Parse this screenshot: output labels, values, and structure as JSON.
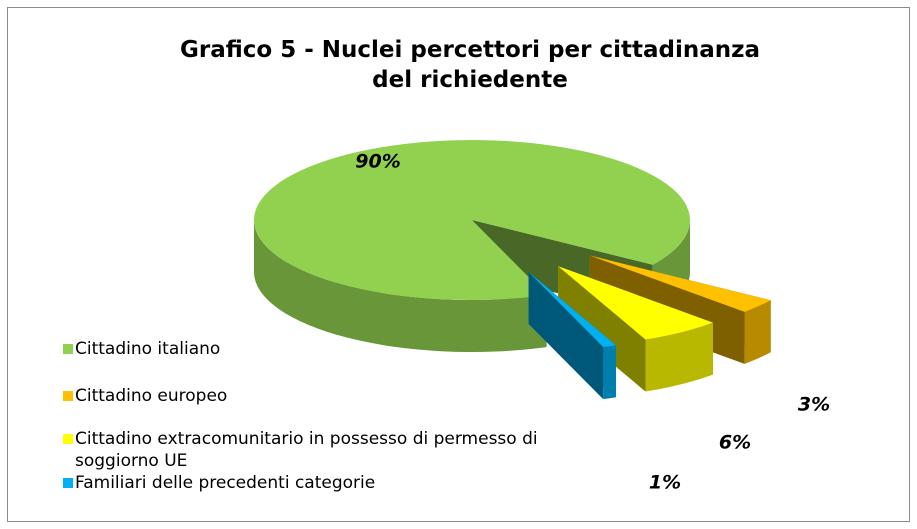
{
  "chart_data": {
    "type": "pie3d",
    "title": [
      "Grafico 5 - Nuclei percettori per cittadinanza",
      "del richiedente"
    ],
    "categories": [
      "Cittadino italiano",
      "Cittadino europeo",
      "Cittadino extracomunitario in possesso di permesso di soggiorno UE",
      "Familiari delle precedenti categorie"
    ],
    "values": [
      90,
      3,
      6,
      1
    ],
    "value_labels": [
      "90%",
      "3%",
      "6%",
      "1%"
    ],
    "colors": [
      "#92d050",
      "#ffc000",
      "#ffff00",
      "#00b0f0"
    ],
    "legend": "left"
  }
}
